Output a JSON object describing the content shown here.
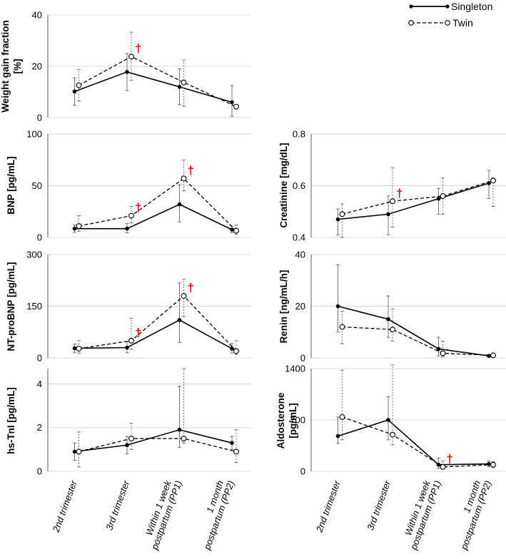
{
  "legend": {
    "singleton": "Singleton",
    "twin": "Twin"
  },
  "colors": {
    "line": "#000000",
    "grid": "#d9d9d9",
    "errorbar": "#666666",
    "dagger": "#e00000"
  },
  "categories": [
    "2nd trimester",
    "3rd trimester",
    "Within 1 week postpartum (PP1)",
    "1 month postpartum (PP2)"
  ],
  "category_lines": [
    [
      "2nd trimester"
    ],
    [
      "3rd trimester"
    ],
    [
      "Within 1 week",
      "postpartum (PP1)"
    ],
    [
      "1 month",
      "postpartum (PP2)"
    ]
  ],
  "dagger_symbol": "†",
  "chart_data": [
    {
      "id": "weight-gain",
      "type": "line",
      "ylabel_lines": [
        "Weight gain fraction",
        "[%]"
      ],
      "ylim": [
        0,
        40
      ],
      "yticks": [
        0,
        20,
        40
      ],
      "series": [
        {
          "name": "Singleton",
          "values": [
            10.2,
            17.8,
            12.0,
            6.0
          ],
          "lower": [
            4.8,
            10.5,
            5.0,
            0.5
          ],
          "upper": [
            15.5,
            25.0,
            19.0,
            12.5
          ]
        },
        {
          "name": "Twin",
          "values": [
            12.6,
            23.8,
            13.7,
            4.3
          ],
          "lower": [
            6.5,
            14.5,
            4.5,
            3.8
          ],
          "upper": [
            18.8,
            33.3,
            22.5,
            4.8
          ]
        }
      ],
      "daggers": [
        1
      ]
    },
    {
      "id": "bnp",
      "type": "line",
      "ylabel_lines": [
        "BNP [pg/mL]"
      ],
      "ylim": [
        0,
        100
      ],
      "yticks": [
        0,
        50,
        100
      ],
      "series": [
        {
          "name": "Singleton",
          "values": [
            8.5,
            8.5,
            32.0,
            7.5
          ],
          "lower": [
            5.0,
            4.5,
            15.0,
            4.5
          ],
          "upper": [
            12.0,
            13.5,
            51.0,
            11.0
          ]
        },
        {
          "name": "Twin",
          "values": [
            11.0,
            21.0,
            57.0,
            6.5
          ],
          "lower": [
            6.0,
            14.0,
            45.0,
            3.0
          ],
          "upper": [
            21.0,
            30.0,
            75.0,
            12.0
          ]
        }
      ],
      "daggers": [
        1,
        2
      ]
    },
    {
      "id": "creatinine",
      "type": "line",
      "ylabel_lines": [
        "Creatinine [mg/dL]"
      ],
      "ylim": [
        0.4,
        0.8
      ],
      "yticks": [
        0.4,
        0.6,
        0.8
      ],
      "yformat": "fixed1",
      "series": [
        {
          "name": "Singleton",
          "values": [
            0.47,
            0.49,
            0.55,
            0.61
          ],
          "lower": [
            0.41,
            0.41,
            0.49,
            0.55
          ],
          "upper": [
            0.51,
            0.56,
            0.59,
            0.66
          ]
        },
        {
          "name": "Twin",
          "values": [
            0.49,
            0.54,
            0.56,
            0.62
          ],
          "lower": [
            0.4,
            0.44,
            0.49,
            0.52
          ],
          "upper": [
            0.53,
            0.67,
            0.63,
            0.63
          ]
        }
      ],
      "daggers": [
        1
      ]
    },
    {
      "id": "nt-probnp",
      "type": "line",
      "ylabel_lines": [
        "NT-proBNP [pg/mL]"
      ],
      "ylim": [
        0,
        300
      ],
      "yticks": [
        0,
        150,
        300
      ],
      "series": [
        {
          "name": "Singleton",
          "values": [
            28,
            30,
            110,
            27
          ],
          "lower": [
            15,
            15,
            45,
            14
          ],
          "upper": [
            40,
            48,
            218,
            42
          ]
        },
        {
          "name": "Twin",
          "values": [
            27,
            50,
            180,
            20
          ],
          "lower": [
            14,
            25,
            120,
            10
          ],
          "upper": [
            50,
            115,
            228,
            50
          ]
        }
      ],
      "daggers": [
        1,
        2
      ]
    },
    {
      "id": "renin",
      "type": "line",
      "ylabel_lines": [
        "Renin [ng/mL/h]"
      ],
      "ylim": [
        0,
        40
      ],
      "yticks": [
        0,
        20,
        40
      ],
      "series": [
        {
          "name": "Singleton",
          "values": [
            20.0,
            15.0,
            3.5,
            0.8
          ],
          "lower": [
            10.0,
            8.0,
            0.8,
            0.4
          ],
          "upper": [
            36.0,
            24.0,
            8.0,
            1.2
          ]
        },
        {
          "name": "Twin",
          "values": [
            12.0,
            11.0,
            1.8,
            1.0
          ],
          "lower": [
            5.5,
            6.5,
            0.5,
            0.5
          ],
          "upper": [
            18.0,
            19.0,
            6.5,
            1.5
          ]
        }
      ],
      "daggers": []
    },
    {
      "id": "hs-tni",
      "type": "line",
      "ylabel_lines": [
        "hs-TnI [pg/mL]"
      ],
      "ylim": [
        0,
        4.7
      ],
      "yticks": [
        0,
        2,
        4
      ],
      "series": [
        {
          "name": "Singleton",
          "values": [
            0.9,
            1.2,
            1.9,
            1.3
          ],
          "lower": [
            0.5,
            0.8,
            1.1,
            1.0
          ],
          "upper": [
            1.3,
            1.6,
            3.9,
            1.6
          ]
        },
        {
          "name": "Twin",
          "values": [
            0.9,
            1.5,
            1.5,
            0.9
          ],
          "lower": [
            0.2,
            1.0,
            1.3,
            0.4
          ],
          "upper": [
            1.8,
            2.2,
            4.7,
            1.9
          ]
        }
      ],
      "daggers": []
    },
    {
      "id": "aldosterone",
      "type": "line",
      "ylabel_lines": [
        "Aldosterone",
        "[pg/mL]"
      ],
      "ylim": [
        0,
        1400
      ],
      "yticks": [
        0,
        700,
        1400
      ],
      "series": [
        {
          "name": "Singleton",
          "values": [
            480,
            700,
            90,
            100
          ],
          "lower": [
            380,
            430,
            40,
            60
          ],
          "upper": [
            740,
            1020,
            180,
            140
          ]
        },
        {
          "name": "Twin",
          "values": [
            740,
            500,
            60,
            90
          ],
          "lower": [
            430,
            360,
            30,
            50
          ],
          "upper": [
            1380,
            1450,
            140,
            130
          ]
        }
      ],
      "daggers": [
        2
      ]
    }
  ]
}
